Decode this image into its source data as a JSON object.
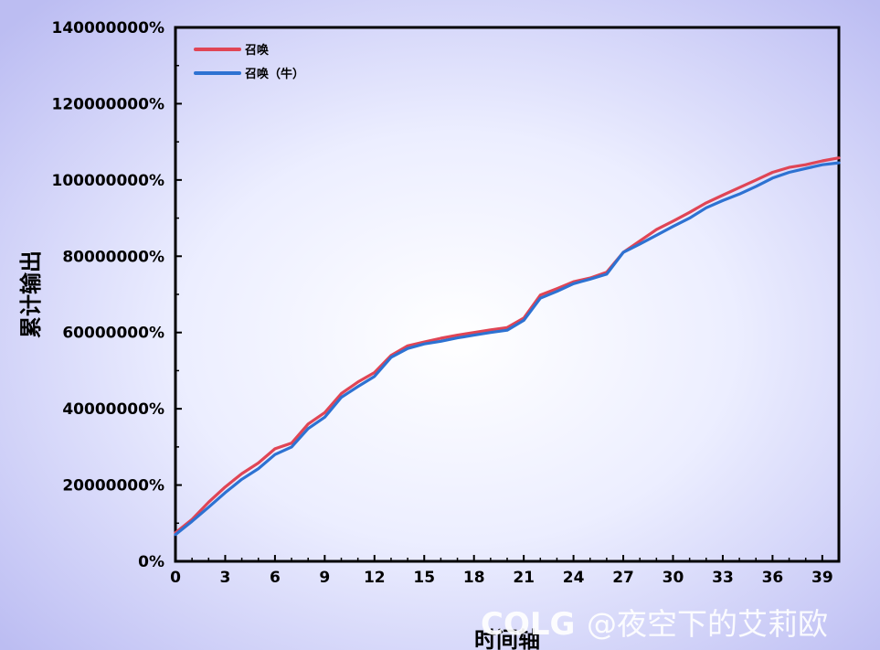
{
  "chart_data": {
    "type": "line",
    "xlabel": "时间轴",
    "ylabel": "累计输出",
    "xlim": [
      0,
      40
    ],
    "ylim": [
      0,
      140000000
    ],
    "x_ticks": [
      0,
      3,
      6,
      9,
      12,
      15,
      18,
      21,
      24,
      27,
      30,
      33,
      36,
      39
    ],
    "y_ticks": [
      0,
      20000000,
      40000000,
      60000000,
      80000000,
      100000000,
      120000000,
      140000000
    ],
    "y_tick_labels": [
      "0%",
      "20000000%",
      "40000000%",
      "60000000%",
      "80000000%",
      "100000000%",
      "120000000%",
      "140000000%"
    ],
    "legend_position": "top-left",
    "grid": false,
    "series": [
      {
        "name": "召唤",
        "color": "#e04555",
        "x": [
          0,
          1,
          2,
          3,
          4,
          5,
          6,
          7,
          8,
          9,
          10,
          11,
          12,
          13,
          14,
          15,
          16,
          17,
          18,
          19,
          20,
          21,
          22,
          23,
          24,
          25,
          26,
          27,
          28,
          29,
          30,
          31,
          32,
          33,
          34,
          35,
          36,
          37,
          38,
          39,
          40
        ],
        "values": [
          7500000,
          11000000,
          15500000,
          19500000,
          23000000,
          25800000,
          29500000,
          31000000,
          36000000,
          39000000,
          44000000,
          47000000,
          49500000,
          54000000,
          56500000,
          57500000,
          58500000,
          59300000,
          60000000,
          60700000,
          61300000,
          63800000,
          69800000,
          71500000,
          73300000,
          74300000,
          75800000,
          81000000,
          84000000,
          87000000,
          89200000,
          91500000,
          94000000,
          96000000,
          98000000,
          100000000,
          102000000,
          103300000,
          104000000,
          105000000,
          105800000
        ]
      },
      {
        "name": "召唤（牛）",
        "color": "#2d72d2",
        "x": [
          0,
          1,
          2,
          3,
          4,
          5,
          6,
          7,
          8,
          9,
          10,
          11,
          12,
          13,
          14,
          15,
          16,
          17,
          18,
          19,
          20,
          21,
          22,
          23,
          24,
          25,
          26,
          27,
          28,
          29,
          30,
          31,
          32,
          33,
          34,
          35,
          36,
          37,
          38,
          39,
          40
        ],
        "values": [
          7000000,
          10500000,
          14200000,
          18000000,
          21500000,
          24300000,
          28000000,
          30000000,
          34800000,
          37800000,
          43000000,
          45800000,
          48500000,
          53500000,
          55800000,
          57000000,
          57700000,
          58600000,
          59300000,
          60000000,
          60600000,
          63200000,
          69000000,
          70800000,
          72800000,
          74000000,
          75300000,
          81000000,
          83200000,
          85500000,
          87800000,
          90000000,
          92700000,
          94600000,
          96300000,
          98300000,
          100500000,
          102000000,
          103000000,
          104000000,
          104500000
        ]
      }
    ]
  },
  "watermark": {
    "logo": "COLG",
    "text": "@夜空下的艾莉欧"
  }
}
